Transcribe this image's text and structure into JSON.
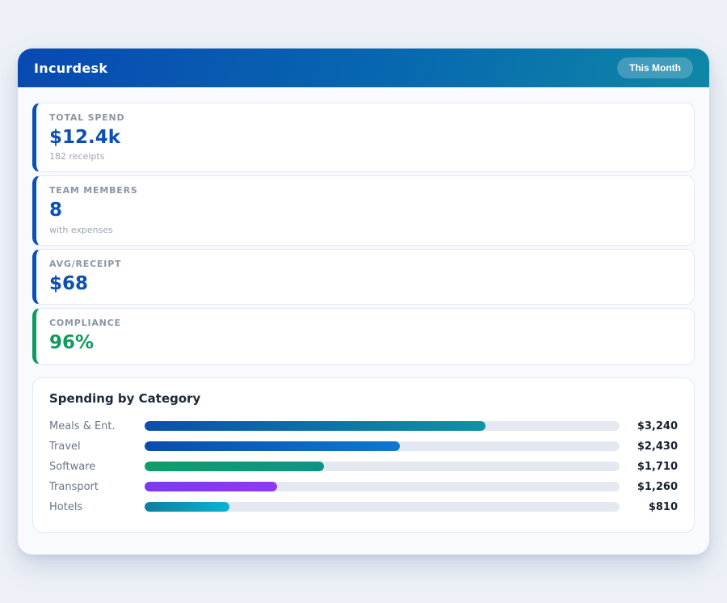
{
  "page": {
    "background": "#edf1f7"
  },
  "header": {
    "title": "Incurdesk",
    "badge_label": "This Month",
    "gradient_start": "#0849b2",
    "gradient_end": "#0f87a6"
  },
  "stats": [
    {
      "label": "TOTAL SPEND",
      "value": "$12.4k",
      "sub": "182 receipts",
      "accent": "#0b50b4"
    },
    {
      "label": "TEAM MEMBERS",
      "value": "8",
      "sub": "with expenses",
      "accent": "#0b50b4"
    },
    {
      "label": "AVG/RECEIPT",
      "value": "$68",
      "sub": "",
      "accent": "#0b50b4"
    },
    {
      "label": "COMPLIANCE",
      "value": "96%",
      "sub": "",
      "accent": "#12995f"
    }
  ],
  "chart_data": {
    "type": "bar",
    "orientation": "horizontal",
    "title": "Spending by Category",
    "categories": [
      "Meals & Ent.",
      "Travel",
      "Software",
      "Transport",
      "Hotels"
    ],
    "values": [
      3240,
      2430,
      1710,
      1260,
      810
    ],
    "value_labels": [
      "$3,240",
      "$2,430",
      "$1,710",
      "$1,260",
      "$810"
    ],
    "scale_max": 4520,
    "track_color": "#e4e9f1",
    "bar_gradients": [
      [
        "#0a4fae",
        "#0e93a6"
      ],
      [
        "#0a4cae",
        "#0b79d4"
      ],
      [
        "#0f9d6a",
        "#0e9488"
      ],
      [
        "#7c3aed",
        "#9238ef"
      ],
      [
        "#0e7f9f",
        "#0cb3d4"
      ]
    ],
    "grid": false,
    "legend": false
  }
}
